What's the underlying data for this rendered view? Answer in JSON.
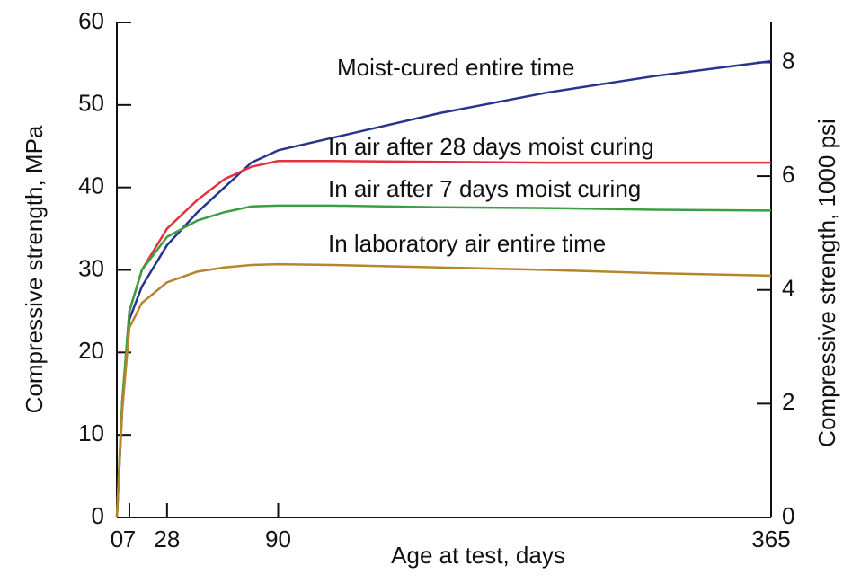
{
  "chart_data": {
    "type": "line",
    "xlabel": "Age at test, days",
    "ylabel": "Compressive strength, MPa",
    "y2label": "Compressive strength, 1000 psi",
    "x": [
      0,
      3,
      7,
      14,
      28,
      45,
      60,
      75,
      90,
      120,
      180,
      240,
      300,
      365
    ],
    "series": [
      {
        "name": "Moist-cured entire time",
        "color": "#27348b",
        "values": [
          0,
          13,
          24,
          28,
          33,
          37,
          40,
          43,
          44.5,
          46,
          49,
          51.5,
          53.5,
          55.3
        ]
      },
      {
        "name": "In air after 28 days moist curing",
        "color": "#e2323f",
        "values": [
          0,
          14,
          25,
          30,
          35,
          38.5,
          41,
          42.5,
          43.2,
          43.2,
          43.1,
          43,
          43,
          43
        ]
      },
      {
        "name": "In air after 7 days moist curing",
        "color": "#3b9e43",
        "values": [
          0,
          14,
          25,
          30,
          34,
          36,
          37,
          37.7,
          37.8,
          37.8,
          37.6,
          37.5,
          37.3,
          37.2
        ]
      },
      {
        "name": "In laboratory air entire time",
        "color": "#b5862c",
        "values": [
          0,
          13,
          23,
          26,
          28.5,
          29.8,
          30.3,
          30.6,
          30.7,
          30.6,
          30.3,
          30,
          29.6,
          29.3
        ]
      }
    ],
    "xlim": [
      0,
      365
    ],
    "xticks": [
      0,
      7,
      28,
      90,
      365
    ],
    "ylim": [
      0,
      60
    ],
    "yticks": [
      0,
      10,
      20,
      30,
      40,
      50,
      60
    ],
    "y2lim": [
      0,
      8.702
    ],
    "y2ticks": [
      0,
      2,
      4,
      6,
      8
    ],
    "grid": false
  }
}
